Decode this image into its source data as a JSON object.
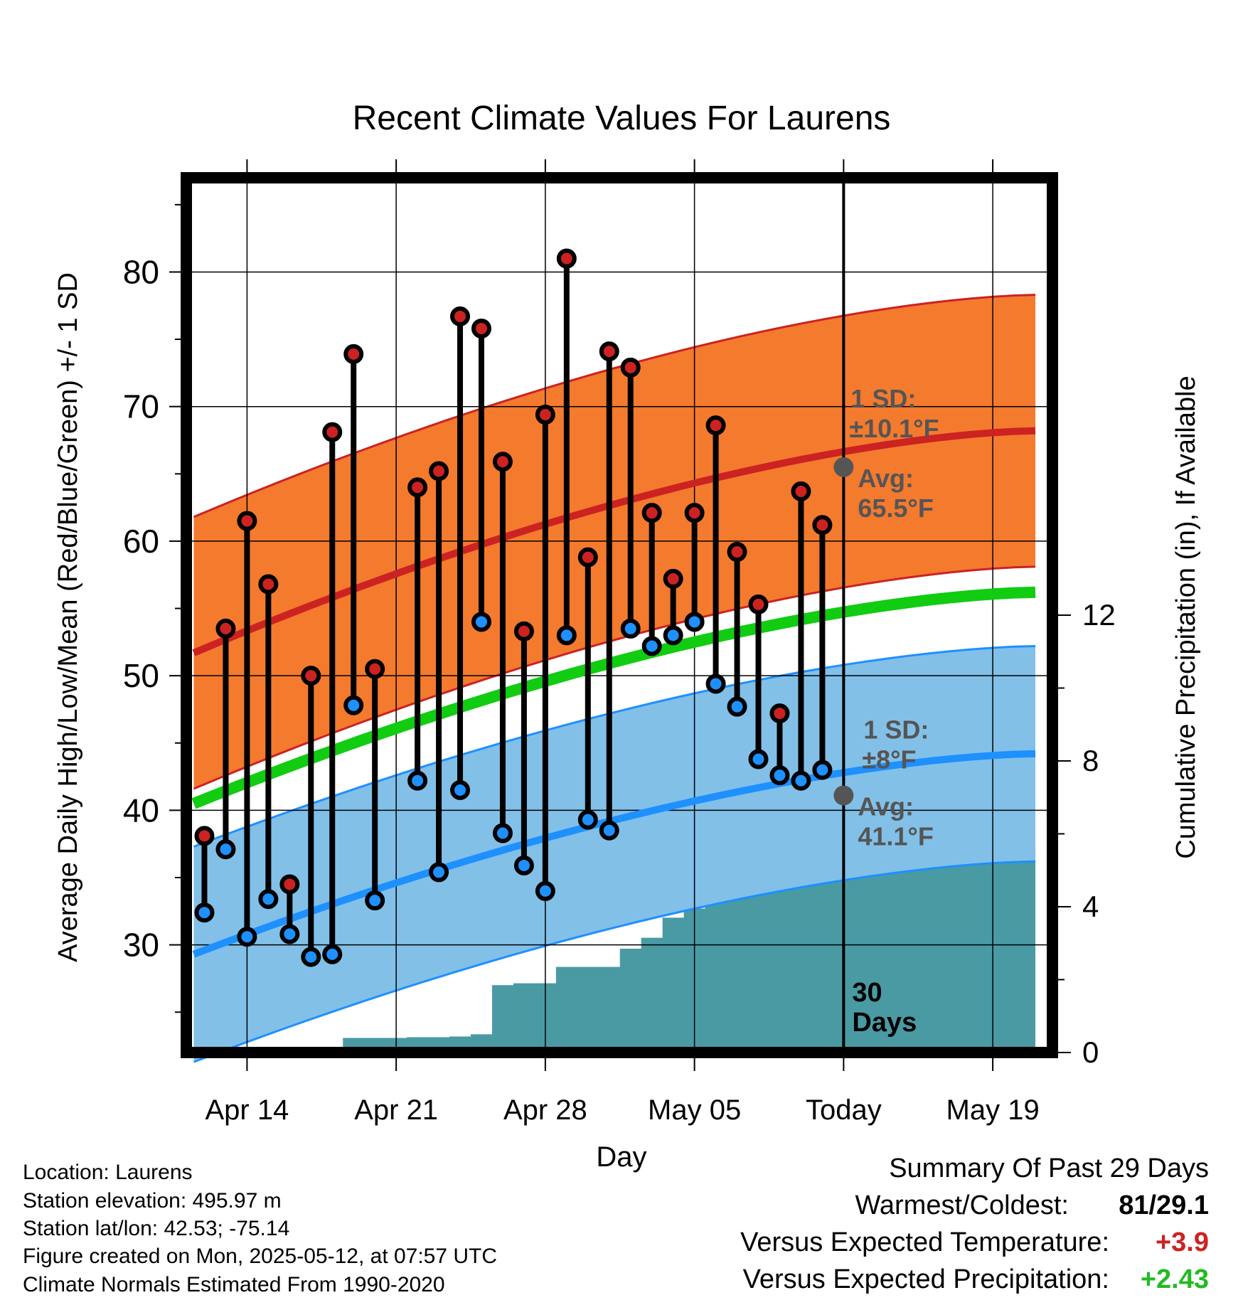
{
  "chart_data": {
    "type": "line",
    "title": "Recent Climate Values For Laurens",
    "xlabel": "Day",
    "ylabel": "Average Daily High/Low/Mean (Red/Blue/Green) +/- 1 SD",
    "y2label": "Cumulative Precipitation (in), If Available",
    "ylim": [
      22,
      87
    ],
    "y2lim": [
      0,
      24
    ],
    "yticks": [
      "30",
      "40",
      "50",
      "60",
      "70",
      "80"
    ],
    "y2ticks": [
      "0",
      "4",
      "8",
      "12"
    ],
    "xticks": [
      "Apr 14",
      "Apr 21",
      "Apr 28",
      "May 05",
      "Today",
      "May 19"
    ],
    "xtick_days": [
      3,
      10,
      17,
      24,
      31,
      38
    ],
    "x_day_zero": "Apr 11",
    "today_day": 31,
    "grid": true,
    "days": [
      1,
      2,
      3,
      4,
      5,
      6,
      7,
      8,
      9,
      10,
      11,
      12,
      13,
      14,
      15,
      16,
      17,
      18,
      19,
      20,
      21,
      22,
      23,
      24,
      25,
      26,
      27,
      28,
      29,
      30
    ],
    "observed_high": [
      38.1,
      53.5,
      61.5,
      56.8,
      34.5,
      50.0,
      68.1,
      73.9,
      50.5,
      null,
      64.0,
      65.2,
      76.7,
      75.8,
      65.9,
      53.3,
      69.4,
      81.0,
      58.8,
      74.1,
      72.9,
      62.1,
      57.2,
      62.1,
      68.6,
      59.2,
      55.3,
      47.2,
      63.7,
      61.2
    ],
    "observed_low": [
      32.4,
      37.1,
      30.6,
      33.4,
      30.8,
      29.1,
      29.3,
      47.8,
      33.3,
      null,
      42.2,
      35.4,
      41.5,
      54.0,
      38.3,
      35.9,
      34.0,
      53.0,
      39.3,
      38.5,
      53.5,
      52.2,
      53.0,
      54.0,
      49.4,
      47.7,
      43.8,
      42.6,
      42.2,
      43.0
    ],
    "normal_high": {
      "name": "Avg",
      "start": 51.7,
      "end": 68.2,
      "today": 65.5,
      "sd": 10.1
    },
    "normal_low": {
      "name": "Avg",
      "start": 29.3,
      "end": 44.2,
      "today": 41.1,
      "sd": 8
    },
    "normal_mean_start": 40.5,
    "normal_mean_end": 56.2,
    "precip_cumulative": [
      0.08,
      0.08,
      0.1,
      0.12,
      0.12,
      0.12,
      0.12,
      0.4,
      0.4,
      0.4,
      0.42,
      0.42,
      0.44,
      0.5,
      1.85,
      1.9,
      1.9,
      2.35,
      2.35,
      2.35,
      2.85,
      3.15,
      3.7,
      3.95,
      4.95,
      5.05,
      5.05,
      5.65,
      5.65,
      5.65,
      5.65,
      5.65,
      5.65,
      5.65,
      5.65,
      5.65,
      5.65,
      5.65,
      5.65,
      5.65
    ],
    "precip_label": "30",
    "precip_label_line2": "Days",
    "colors": {
      "high_band": "#f47a2e",
      "high_line": "#cc2222",
      "low_band": "#82c0e8",
      "low_line": "#1e90ff",
      "mean_line": "#11cc11",
      "precip": "#4a9aa4",
      "high_marker": "#cc2222",
      "low_marker": "#1e90ff",
      "avg_dot": "#555555",
      "annotation": "#555555"
    }
  },
  "annotations": {
    "high_sd_line1": "1 SD:",
    "high_sd_line2": "±10.1°F",
    "high_avg_line1": "Avg:",
    "high_avg_line2": "65.5°F",
    "low_sd_line1": "1 SD:",
    "low_sd_line2": "±8°F",
    "low_avg_line1": "Avg:",
    "low_avg_line2": "41.1°F"
  },
  "info": {
    "location": "Location: Laurens",
    "elevation": "Station elevation: 495.97 m",
    "latlon": "Station lat/lon: 42.53; -75.14",
    "created": "Figure created on Mon, 2025-05-12, at 07:57 UTC",
    "normals": "Climate Normals Estimated From 1990-2020"
  },
  "summary": {
    "title": "Summary Of Past 29 Days",
    "warmest_label": "Warmest/Coldest:",
    "warmest_value": "81/29.1",
    "temp_label": "Versus Expected Temperature:",
    "temp_value": "+3.9",
    "temp_color": "#cc2222",
    "precip_label": "Versus Expected Precipitation:",
    "precip_value": "+2.43",
    "precip_color": "#22bb22"
  }
}
